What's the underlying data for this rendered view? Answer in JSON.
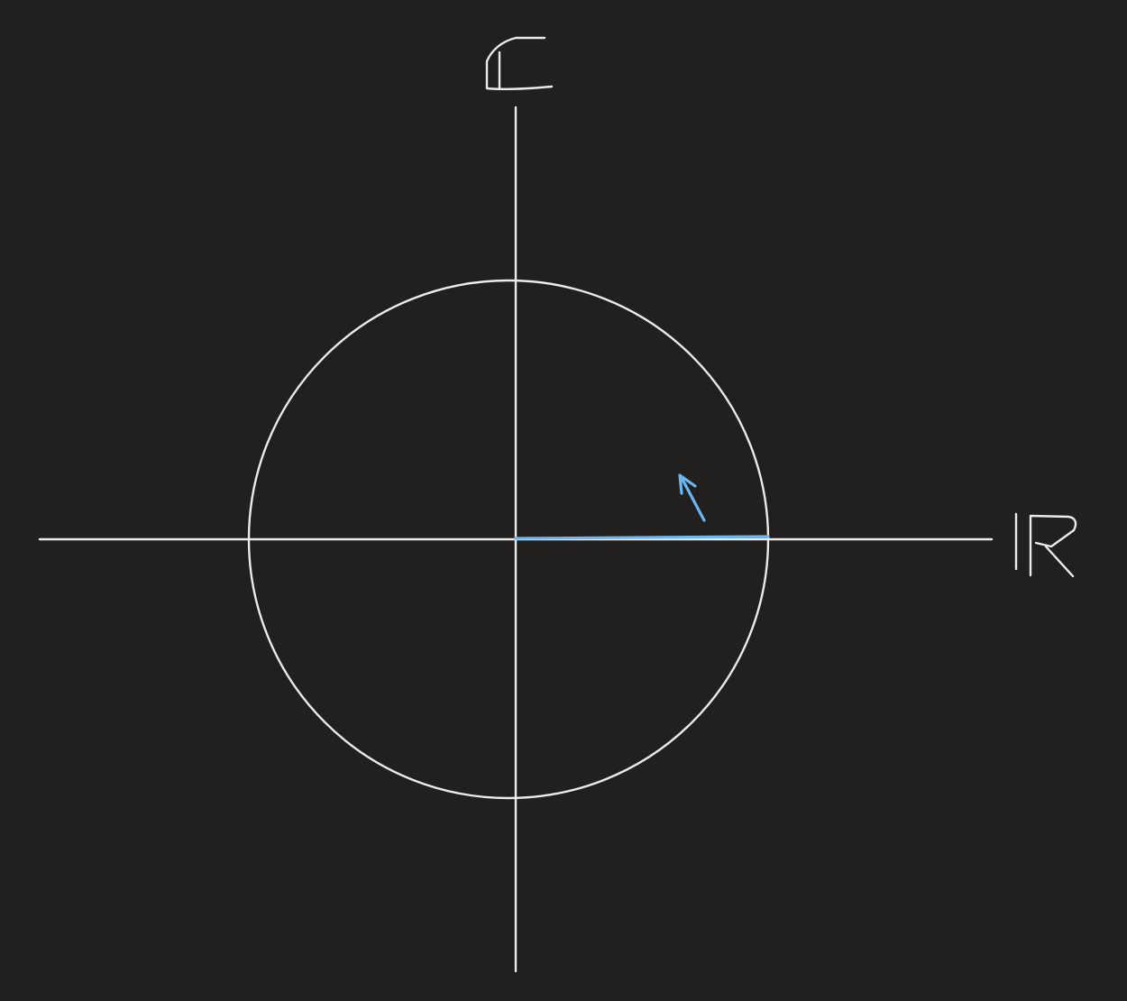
{
  "labels": {
    "vertical_axis": "ℂ",
    "horizontal_axis": "ℝ"
  },
  "colors": {
    "background": "#21201f",
    "ink": "#ecebe8",
    "highlight": "#6cb6f2"
  },
  "figure": {
    "elements": [
      "real-axis",
      "complex-axis",
      "unit-circle",
      "radius-segment",
      "rotation-arrow"
    ]
  }
}
